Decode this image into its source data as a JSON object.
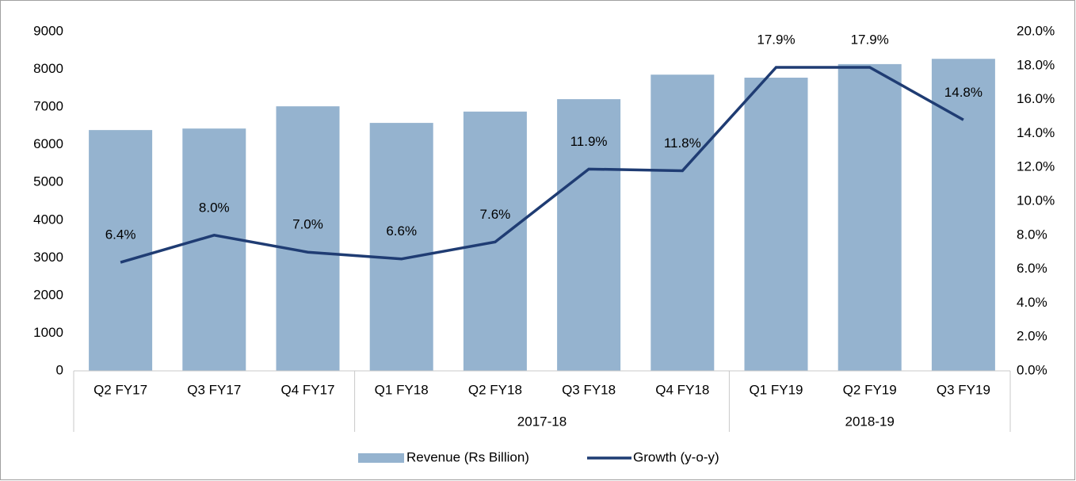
{
  "chart_data": {
    "type": "bar_line",
    "categories": [
      "Q2 FY17",
      "Q3 FY17",
      "Q4 FY17",
      "Q1 FY18",
      "Q2 FY18",
      "Q3 FY18",
      "Q4 FY18",
      "Q1 FY19",
      "Q2 FY19",
      "Q3 FY19"
    ],
    "category_groups": [
      {
        "name": null,
        "size": 3
      },
      {
        "name": "2017-18",
        "size": 4
      },
      {
        "name": "2018-19",
        "size": 3
      }
    ],
    "series": [
      {
        "name": "Revenue (Rs Billion)",
        "type": "bar",
        "color": "#95b3cf",
        "axis": "y",
        "values": [
          6390,
          6430,
          7020,
          6580,
          6880,
          7210,
          7860,
          7780,
          8140,
          8280
        ]
      },
      {
        "name": "Growth (y-o-y)",
        "type": "line",
        "color": "#1f3c73",
        "axis": "y2",
        "values": [
          6.4,
          8.0,
          7.0,
          6.6,
          7.6,
          11.9,
          11.8,
          17.9,
          17.9,
          14.8
        ],
        "value_labels": [
          "6.4%",
          "8.0%",
          "7.0%",
          "6.6%",
          "7.6%",
          "11.9%",
          "11.8%",
          "17.9%",
          "17.9%",
          "14.8%"
        ]
      }
    ],
    "ylim": [
      0,
      9000
    ],
    "yticks": [
      0,
      1000,
      2000,
      3000,
      4000,
      5000,
      6000,
      7000,
      8000,
      9000
    ],
    "y2lim": [
      0,
      20
    ],
    "y2ticks": [
      {
        "value": 0,
        "label": "0.0%"
      },
      {
        "value": 2,
        "label": "2.0%"
      },
      {
        "value": 4,
        "label": "4.0%"
      },
      {
        "value": 6,
        "label": "6.0%"
      },
      {
        "value": 8,
        "label": "8.0%"
      },
      {
        "value": 10,
        "label": "10.0%"
      },
      {
        "value": 12,
        "label": "12.0%"
      },
      {
        "value": 14,
        "label": "14.0%"
      },
      {
        "value": 16,
        "label": "16.0%"
      },
      {
        "value": 18,
        "label": "18.0%"
      },
      {
        "value": 20,
        "label": "20.0%"
      }
    ],
    "legend": "bottom"
  }
}
